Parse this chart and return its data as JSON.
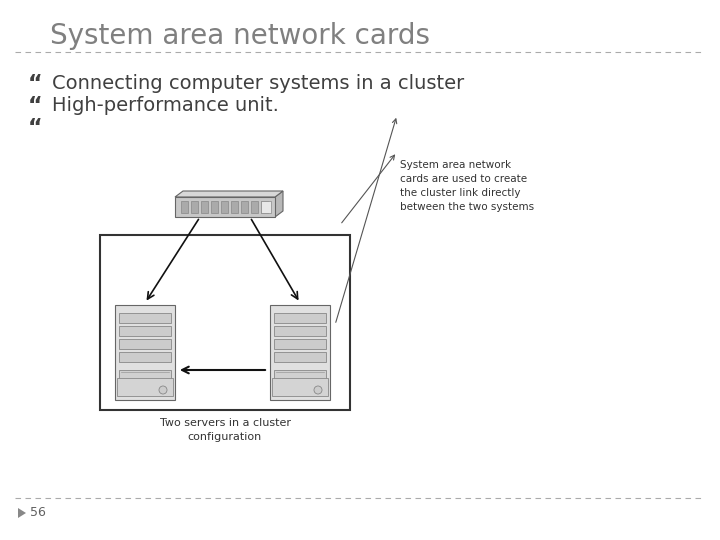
{
  "title": "System area network cards",
  "title_color": "#808080",
  "title_fontsize": 20,
  "bullet_symbol": "“",
  "bullets": [
    "Connecting computer systems in a cluster",
    "High-performance unit."
  ],
  "bullet_fontsize": 14,
  "bullet_color": "#404040",
  "page_number": "56",
  "page_number_color": "#606060",
  "background_color": "#ffffff",
  "divider_color": "#aaaaaa",
  "annotation_text": "System area network\ncards are used to create\nthe cluster link directly\nbetween the two systems",
  "caption_text": "Two servers in a cluster\nconfiguration",
  "annotation_fontsize": 7.5,
  "caption_fontsize": 8
}
